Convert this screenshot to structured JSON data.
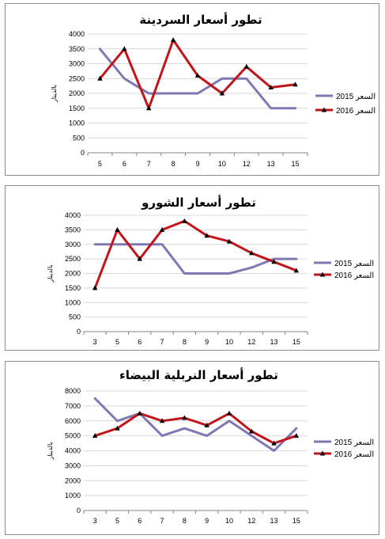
{
  "chart_data": [
    {
      "type": "line",
      "title": "تطور أسعار السردينة",
      "ylabel": "بالدينار",
      "categories": [
        "5",
        "6",
        "7",
        "8",
        "9",
        "10",
        "12",
        "13",
        "15"
      ],
      "yticks": [
        "0",
        "500",
        "1000",
        "1500",
        "2000",
        "2500",
        "3000",
        "3500",
        "4000"
      ],
      "ylim": [
        0,
        4000
      ],
      "grid": true,
      "legend_position": "right",
      "series": [
        {
          "name": "2015 السعر",
          "values": [
            3500,
            2500,
            2000,
            2000,
            2000,
            2500,
            2500,
            1500,
            1500
          ],
          "color": "#8078b0",
          "marker": "none"
        },
        {
          "name": "2016 السعر",
          "values": [
            2500,
            3500,
            1500,
            3800,
            2600,
            2000,
            2900,
            2200,
            2300
          ],
          "color": "#c0161b",
          "marker": "triangle"
        }
      ]
    },
    {
      "type": "line",
      "title": "تطور أسعار الشورو",
      "ylabel": "بالدينار",
      "categories": [
        "3",
        "5",
        "6",
        "7",
        "8",
        "9",
        "10",
        "12",
        "13",
        "15"
      ],
      "yticks": [
        "0",
        "500",
        "1000",
        "1500",
        "2000",
        "2500",
        "3000",
        "3500",
        "4000"
      ],
      "ylim": [
        0,
        4000
      ],
      "grid": true,
      "legend_position": "right",
      "series": [
        {
          "name": "2015 السعر",
          "values": [
            3000,
            3000,
            3000,
            3000,
            2000,
            2000,
            2000,
            2200,
            2500,
            2500
          ],
          "color": "#8078b0",
          "marker": "none"
        },
        {
          "name": "2016 السعر",
          "values": [
            1500,
            3500,
            2500,
            3500,
            3800,
            3300,
            3100,
            2700,
            2400,
            2100
          ],
          "color": "#c0161b",
          "marker": "triangle"
        }
      ]
    },
    {
      "type": "line",
      "title": "تطور أسعار النربلية البيضاء",
      "ylabel": "بالدينار",
      "categories": [
        "3",
        "5",
        "6",
        "7",
        "8",
        "9",
        "10",
        "12",
        "13",
        "15"
      ],
      "yticks": [
        "0",
        "1000",
        "2000",
        "3000",
        "4000",
        "5000",
        "6000",
        "7000",
        "8000"
      ],
      "ylim": [
        0,
        8000
      ],
      "grid": true,
      "legend_position": "right",
      "series": [
        {
          "name": "2015 السعر",
          "values": [
            7500,
            6000,
            6500,
            5000,
            5500,
            5000,
            6000,
            5000,
            4000,
            5500
          ],
          "color": "#8078b0",
          "marker": "none"
        },
        {
          "name": "2016 السعر",
          "values": [
            5000,
            5500,
            6500,
            6000,
            6200,
            5700,
            6500,
            5300,
            4500,
            5000
          ],
          "color": "#c0161b",
          "marker": "triangle"
        }
      ]
    }
  ]
}
